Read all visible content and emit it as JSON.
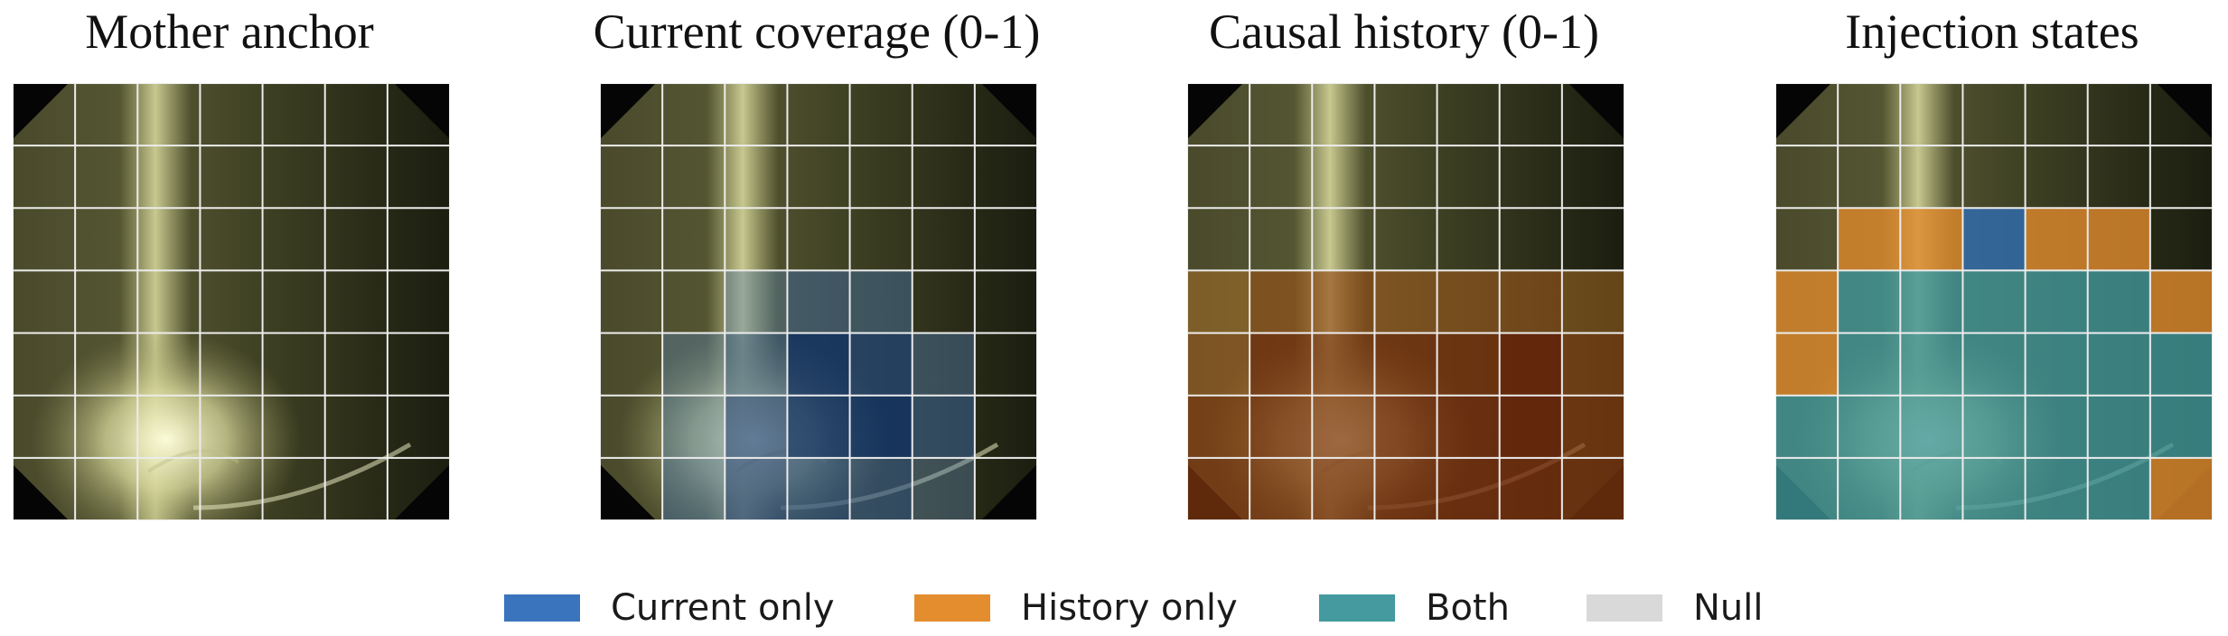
{
  "panels": [
    {
      "id": "mother",
      "title": "Mother anchor"
    },
    {
      "id": "coverage",
      "title": "Current coverage (0-1)"
    },
    {
      "id": "history",
      "title": "Causal history (0-1)"
    },
    {
      "id": "injection",
      "title": "Injection states"
    }
  ],
  "grid": {
    "rows": 7,
    "cols": 7
  },
  "coverage_map": [
    [
      0,
      0,
      0,
      0,
      0,
      0,
      0
    ],
    [
      0,
      0,
      0,
      0,
      0,
      0,
      0
    ],
    [
      0,
      0,
      0,
      0,
      0,
      0,
      0
    ],
    [
      0,
      0,
      0.2,
      0.45,
      0.4,
      0,
      0
    ],
    [
      0,
      0.2,
      0.55,
      0.95,
      0.8,
      0.35,
      0
    ],
    [
      0,
      0.3,
      0.75,
      0.95,
      0.95,
      0.55,
      0
    ],
    [
      0,
      0.4,
      0.75,
      0.7,
      0.6,
      0.2,
      0
    ]
  ],
  "history_map": [
    [
      0,
      0,
      0,
      0,
      0,
      0,
      0
    ],
    [
      0,
      0,
      0,
      0,
      0,
      0,
      0
    ],
    [
      0,
      0,
      0,
      0,
      0,
      0,
      0
    ],
    [
      0.2,
      0.55,
      0.6,
      0.45,
      0.45,
      0.45,
      0.2
    ],
    [
      0.45,
      0.85,
      0.8,
      0.85,
      0.85,
      0.95,
      0.6
    ],
    [
      0.75,
      0.85,
      0.8,
      0.9,
      0.9,
      0.95,
      0.75
    ],
    [
      0.8,
      0.8,
      0.85,
      0.9,
      0.9,
      0.9,
      0.8
    ]
  ],
  "injection_map": [
    [
      "null",
      "null",
      "null",
      "null",
      "null",
      "null",
      "null"
    ],
    [
      "null",
      "null",
      "null",
      "null",
      "null",
      "null",
      "null"
    ],
    [
      "null",
      "history",
      "history",
      "current",
      "history",
      "history",
      "null"
    ],
    [
      "history",
      "both",
      "both",
      "both",
      "both",
      "both",
      "history"
    ],
    [
      "history",
      "both",
      "both",
      "both",
      "both",
      "both",
      "both"
    ],
    [
      "both",
      "both",
      "both",
      "both",
      "both",
      "both",
      "both"
    ],
    [
      "both",
      "both",
      "both",
      "both",
      "both",
      "both",
      "history"
    ]
  ],
  "colors": {
    "current": "#2f6db3",
    "history": "#e08a2c",
    "both": "#3f9599",
    "null": "#d9d9d9",
    "coverage_cmap_low": "#6a93b8",
    "coverage_cmap_high": "#0c2f66",
    "history_cmap_low": "#d08a2a",
    "history_cmap_high": "#6a2208"
  },
  "legend": [
    {
      "key": "current",
      "label": "Current only",
      "color": "#3a74bd"
    },
    {
      "key": "history",
      "label": "History only",
      "color": "#e38d2f"
    },
    {
      "key": "both",
      "label": "Both",
      "color": "#449a9e"
    },
    {
      "key": "null",
      "label": "Null",
      "color": "#d9d9d9"
    }
  ]
}
